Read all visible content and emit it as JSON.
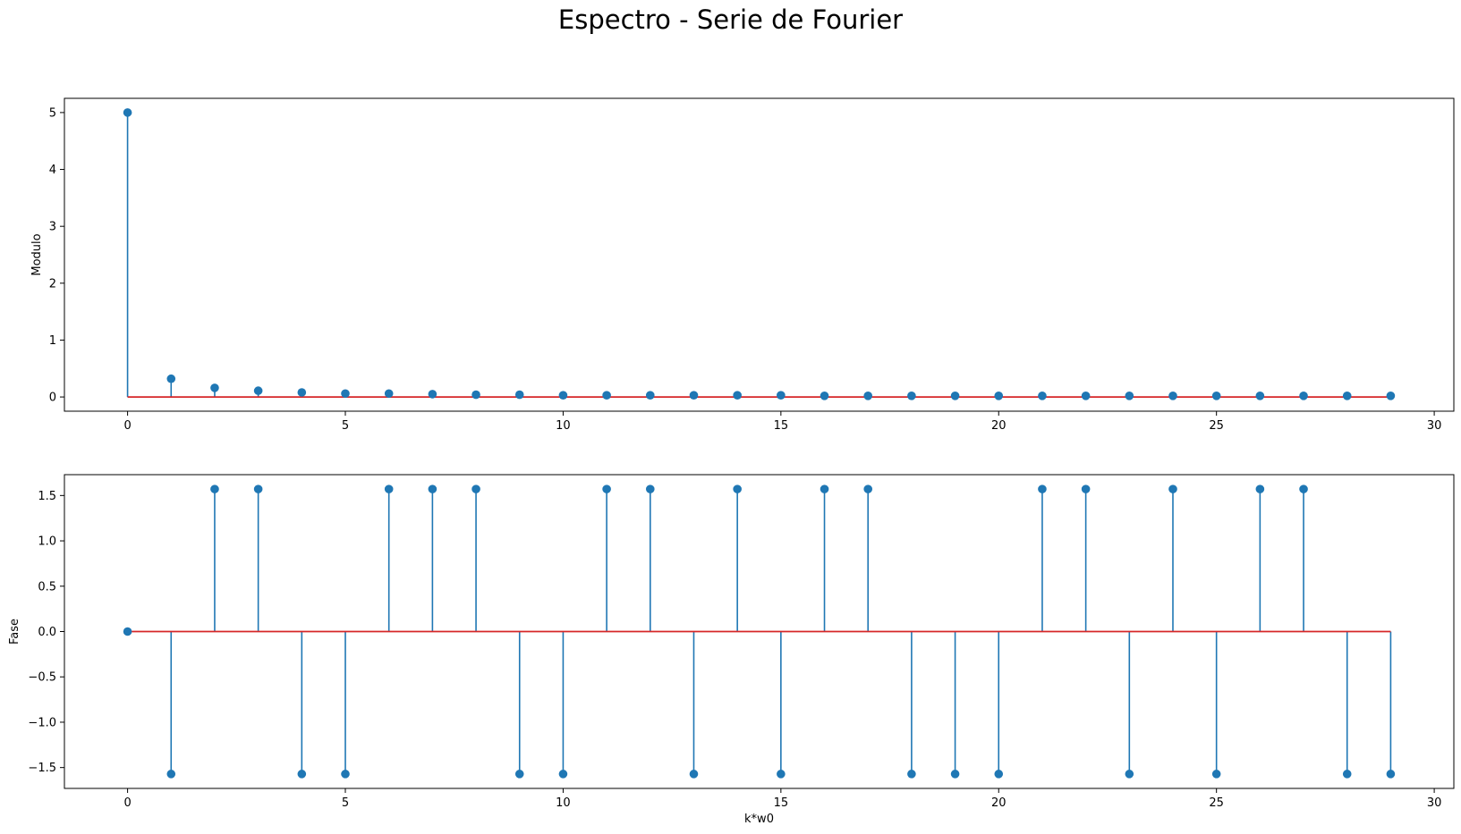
{
  "figure": {
    "title": "Espectro - Serie de Fourier"
  },
  "colors": {
    "stem": "#1f77b4",
    "baseline": "#d62728",
    "axes": "#000000"
  },
  "chart_data": [
    {
      "type": "stem",
      "title": "",
      "xlabel": "",
      "ylabel": "Modulo",
      "xlim": [
        -1.45,
        30.45
      ],
      "ylim": [
        -0.25,
        5.25
      ],
      "xticks": [
        0,
        5,
        10,
        15,
        20,
        25,
        30
      ],
      "xtick_labels": [
        "0",
        "5",
        "10",
        "15",
        "20",
        "25",
        "30"
      ],
      "yticks": [
        0,
        1,
        2,
        3,
        4,
        5
      ],
      "ytick_labels": [
        "0",
        "1",
        "2",
        "3",
        "4",
        "5"
      ],
      "grid": false,
      "x": [
        0,
        1,
        2,
        3,
        4,
        5,
        6,
        7,
        8,
        9,
        10,
        11,
        12,
        13,
        14,
        15,
        16,
        17,
        18,
        19,
        20,
        21,
        22,
        23,
        24,
        25,
        26,
        27,
        28,
        29
      ],
      "values": [
        5.0,
        0.32,
        0.16,
        0.11,
        0.08,
        0.06,
        0.06,
        0.05,
        0.04,
        0.04,
        0.03,
        0.03,
        0.03,
        0.03,
        0.03,
        0.03,
        0.02,
        0.02,
        0.02,
        0.02,
        0.02,
        0.02,
        0.02,
        0.02,
        0.02,
        0.02,
        0.02,
        0.02,
        0.02,
        0.02
      ]
    },
    {
      "type": "stem",
      "title": "",
      "xlabel": "k*w0",
      "ylabel": "Fase",
      "xlim": [
        -1.45,
        30.45
      ],
      "ylim": [
        -1.73,
        1.73
      ],
      "xticks": [
        0,
        5,
        10,
        15,
        20,
        25,
        30
      ],
      "xtick_labels": [
        "0",
        "5",
        "10",
        "15",
        "20",
        "25",
        "30"
      ],
      "yticks": [
        -1.5,
        -1.0,
        -0.5,
        0.0,
        0.5,
        1.0,
        1.5
      ],
      "ytick_labels": [
        "−1.5",
        "−1.0",
        "−0.5",
        "0.0",
        "0.5",
        "1.0",
        "1.5"
      ],
      "grid": false,
      "x": [
        0,
        1,
        2,
        3,
        4,
        5,
        6,
        7,
        8,
        9,
        10,
        11,
        12,
        13,
        14,
        15,
        16,
        17,
        18,
        19,
        20,
        21,
        22,
        23,
        24,
        25,
        26,
        27,
        28,
        29
      ],
      "values": [
        0,
        -1.5708,
        1.5708,
        1.5708,
        -1.5708,
        -1.5708,
        1.5708,
        1.5708,
        1.5708,
        -1.5708,
        -1.5708,
        1.5708,
        1.5708,
        -1.5708,
        1.5708,
        -1.5708,
        1.5708,
        1.5708,
        -1.5708,
        -1.5708,
        -1.5708,
        1.5708,
        1.5708,
        -1.5708,
        1.5708,
        -1.5708,
        1.5708,
        1.5708,
        -1.5708,
        -1.5708
      ]
    }
  ]
}
